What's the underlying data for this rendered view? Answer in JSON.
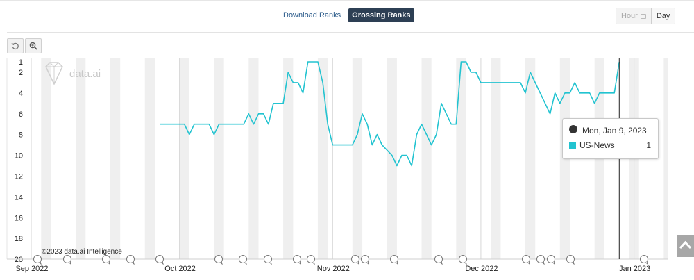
{
  "tabs": {
    "download": "Download Ranks",
    "grossing": "Grossing Ranks"
  },
  "granularity": {
    "hour": "Hour",
    "day": "Day"
  },
  "tools": {
    "reset_icon": "undo-icon",
    "zoom_icon": "zoom-in-icon"
  },
  "watermark": "data.ai",
  "copyright": "©2023 data.ai Intelligence",
  "tooltip": {
    "date": "Mon, Jan 9, 2023",
    "series": "US-News",
    "value": "1"
  },
  "colors": {
    "line": "#22c3d0",
    "active_tab": "#2d3f54",
    "weekend_band": "#efefef"
  },
  "chart_data": {
    "type": "line",
    "y_reversed": true,
    "ylim": [
      1,
      20
    ],
    "yticks": [
      1,
      2,
      4,
      6,
      8,
      10,
      12,
      14,
      16,
      18,
      20
    ],
    "x_start": "2022-09-01",
    "x_end": "2023-01-09",
    "xtick_labels": [
      {
        "label": "Sep 2022",
        "date": "2022-09-01"
      },
      {
        "label": "Oct 2022",
        "date": "2022-10-01"
      },
      {
        "label": "Nov 2022",
        "date": "2022-11-01"
      },
      {
        "label": "Dec 2022",
        "date": "2022-12-01"
      },
      {
        "label": "Jan 2023",
        "date": "2023-01-01"
      }
    ],
    "series": [
      {
        "name": "US-News",
        "points": [
          [
            "2022-09-27",
            7
          ],
          [
            "2022-10-01",
            7
          ],
          [
            "2022-10-02",
            7
          ],
          [
            "2022-10-03",
            8
          ],
          [
            "2022-10-04",
            7
          ],
          [
            "2022-10-05",
            7
          ],
          [
            "2022-10-06",
            7
          ],
          [
            "2022-10-07",
            7
          ],
          [
            "2022-10-08",
            8
          ],
          [
            "2022-10-09",
            7
          ],
          [
            "2022-10-11",
            7
          ],
          [
            "2022-10-13",
            7
          ],
          [
            "2022-10-14",
            7
          ],
          [
            "2022-10-15",
            6
          ],
          [
            "2022-10-16",
            7
          ],
          [
            "2022-10-17",
            6
          ],
          [
            "2022-10-18",
            6
          ],
          [
            "2022-10-19",
            7
          ],
          [
            "2022-10-20",
            5
          ],
          [
            "2022-10-21",
            5
          ],
          [
            "2022-10-22",
            5
          ],
          [
            "2022-10-23",
            2
          ],
          [
            "2022-10-24",
            3
          ],
          [
            "2022-10-25",
            3
          ],
          [
            "2022-10-26",
            4
          ],
          [
            "2022-10-27",
            1
          ],
          [
            "2022-10-29",
            1
          ],
          [
            "2022-10-30",
            3
          ],
          [
            "2022-10-31",
            7
          ],
          [
            "2022-11-01",
            9
          ],
          [
            "2022-11-03",
            9
          ],
          [
            "2022-11-05",
            9
          ],
          [
            "2022-11-06",
            8
          ],
          [
            "2022-11-07",
            6
          ],
          [
            "2022-11-08",
            7
          ],
          [
            "2022-11-09",
            9
          ],
          [
            "2022-11-10",
            8
          ],
          [
            "2022-11-11",
            9
          ],
          [
            "2022-11-13",
            10
          ],
          [
            "2022-11-14",
            11
          ],
          [
            "2022-11-15",
            10
          ],
          [
            "2022-11-16",
            10
          ],
          [
            "2022-11-17",
            11
          ],
          [
            "2022-11-18",
            8
          ],
          [
            "2022-11-19",
            7
          ],
          [
            "2022-11-20",
            8
          ],
          [
            "2022-11-21",
            9
          ],
          [
            "2022-11-22",
            8
          ],
          [
            "2022-11-23",
            5
          ],
          [
            "2022-11-24",
            6
          ],
          [
            "2022-11-25",
            7
          ],
          [
            "2022-11-26",
            7
          ],
          [
            "2022-11-27",
            1
          ],
          [
            "2022-11-28",
            1
          ],
          [
            "2022-11-29",
            2
          ],
          [
            "2022-11-30",
            2
          ],
          [
            "2022-12-01",
            3
          ],
          [
            "2022-12-02",
            3
          ],
          [
            "2022-12-03",
            3
          ],
          [
            "2022-12-08",
            3
          ],
          [
            "2022-12-09",
            3
          ],
          [
            "2022-12-10",
            4
          ],
          [
            "2022-12-11",
            2
          ],
          [
            "2022-12-14",
            5
          ],
          [
            "2022-12-15",
            6
          ],
          [
            "2022-12-16",
            4
          ],
          [
            "2022-12-17",
            5
          ],
          [
            "2022-12-18",
            4
          ],
          [
            "2022-12-19",
            4
          ],
          [
            "2022-12-20",
            3
          ],
          [
            "2022-12-21",
            4
          ],
          [
            "2022-12-23",
            4
          ],
          [
            "2022-12-24",
            5
          ],
          [
            "2022-12-25",
            4
          ],
          [
            "2022-12-27",
            4
          ],
          [
            "2022-12-28",
            4
          ],
          [
            "2022-12-29",
            1
          ]
        ]
      }
    ],
    "grid": true
  }
}
